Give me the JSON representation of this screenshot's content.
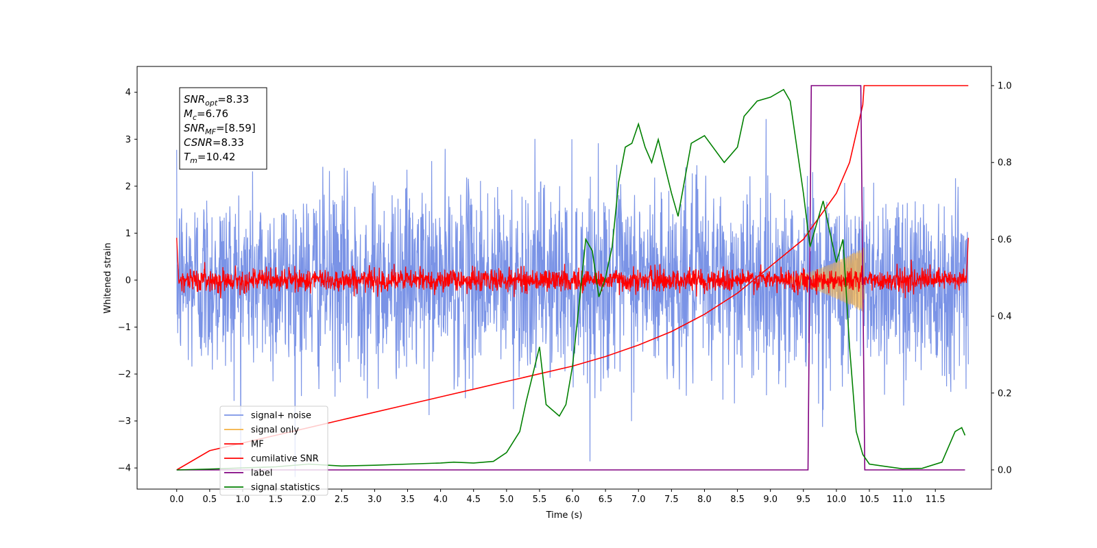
{
  "chart_data": {
    "type": "line",
    "xlabel": "Time (s)",
    "ylabel": "Whitened strain",
    "xlim": [
      -0.6,
      12.35
    ],
    "ylim": [
      -4.45,
      4.55
    ],
    "y2lim": [
      -0.05,
      1.05
    ],
    "x_ticks": [
      "0.0",
      "0.5",
      "1.0",
      "1.5",
      "2.0",
      "2.5",
      "3.0",
      "3.5",
      "4.0",
      "4.5",
      "5.0",
      "5.5",
      "6.0",
      "6.5",
      "7.0",
      "7.5",
      "8.0",
      "8.5",
      "9.0",
      "9.5",
      "10.0",
      "10.5",
      "11.0",
      "11.5"
    ],
    "y_ticks": [
      "4",
      "3",
      "2",
      "1",
      "0",
      "−1",
      "−2",
      "−3",
      "−4"
    ],
    "y2_ticks": [
      "1.0",
      "0.8",
      "0.6",
      "0.4",
      "0.2",
      "0.0"
    ],
    "annotation": [
      {
        "base": "SNR",
        "sub": "opt",
        "rest": "=8.33"
      },
      {
        "base": "M",
        "sub": "c",
        "rest": "=6.76"
      },
      {
        "base": "SNR",
        "sub": "MF",
        "rest": "=[8.59]"
      },
      {
        "base": "CSNR",
        "sub": "",
        "rest": "=8.33"
      },
      {
        "base": "T",
        "sub": "m",
        "rest": "=10.42"
      }
    ],
    "legend": {
      "position": "lower-left",
      "entries": [
        {
          "label": "signal+ noise",
          "color": "#7a93e6"
        },
        {
          "label": "signal only",
          "color": "#f5b041"
        },
        {
          "label": "MF",
          "color": "#ff0000"
        },
        {
          "label": "cumilative SNR",
          "color": "#ff0000"
        },
        {
          "label": "label",
          "color": "#800080"
        },
        {
          "label": "signal statistics",
          "color": "#008000"
        }
      ]
    },
    "series": [
      {
        "name": "signal+ noise",
        "axis": "left",
        "color": "#7a93e6",
        "x_range": [
          0,
          12
        ],
        "amplitude_peak": 4.2,
        "noise_std": 1.0
      },
      {
        "name": "signal only",
        "axis": "left",
        "color": "#f5b041",
        "x_range": [
          9.0,
          10.42
        ],
        "envelope_peak": 0.7
      },
      {
        "name": "MF",
        "axis": "left",
        "color": "#ff0000",
        "x_range": [
          0,
          12
        ],
        "noise_std": 0.12
      },
      {
        "name": "cumilative SNR",
        "axis": "right",
        "color": "#ff0000",
        "x": [
          0.0,
          0.5,
          1.0,
          1.5,
          2.0,
          2.5,
          3.0,
          3.5,
          4.0,
          4.5,
          5.0,
          5.5,
          6.0,
          6.5,
          7.0,
          7.5,
          8.0,
          8.5,
          9.0,
          9.5,
          10.0,
          10.2,
          10.4,
          10.42,
          11.0,
          12.0
        ],
        "y": [
          0.0,
          0.05,
          0.07,
          0.09,
          0.11,
          0.13,
          0.15,
          0.17,
          0.19,
          0.21,
          0.23,
          0.25,
          0.27,
          0.295,
          0.325,
          0.36,
          0.405,
          0.46,
          0.53,
          0.6,
          0.72,
          0.8,
          0.95,
          1.0,
          1.0,
          1.0
        ]
      },
      {
        "name": "label",
        "axis": "right",
        "color": "#800080",
        "x": [
          0.0,
          9.57,
          9.62,
          10.37,
          10.43,
          11.95
        ],
        "y": [
          0,
          0,
          1,
          1,
          0,
          0
        ]
      },
      {
        "name": "signal statistics",
        "axis": "right",
        "color": "#008000",
        "x": [
          0.0,
          0.5,
          1.0,
          1.5,
          2.0,
          2.5,
          3.0,
          3.5,
          4.0,
          4.2,
          4.5,
          4.8,
          5.0,
          5.2,
          5.3,
          5.5,
          5.6,
          5.8,
          5.9,
          6.0,
          6.1,
          6.2,
          6.3,
          6.4,
          6.5,
          6.6,
          6.7,
          6.8,
          6.9,
          7.0,
          7.1,
          7.2,
          7.3,
          7.5,
          7.6,
          7.8,
          8.0,
          8.3,
          8.5,
          8.6,
          8.8,
          9.0,
          9.2,
          9.3,
          9.5,
          9.6,
          9.8,
          10.0,
          10.1,
          10.2,
          10.3,
          10.4,
          10.5,
          10.7,
          11.0,
          11.3,
          11.6,
          11.8,
          11.9,
          11.95
        ],
        "y": [
          0.0,
          0.002,
          0.005,
          0.008,
          0.015,
          0.01,
          0.012,
          0.015,
          0.018,
          0.02,
          0.018,
          0.022,
          0.045,
          0.1,
          0.18,
          0.32,
          0.17,
          0.14,
          0.17,
          0.27,
          0.43,
          0.6,
          0.57,
          0.45,
          0.5,
          0.58,
          0.75,
          0.84,
          0.85,
          0.9,
          0.84,
          0.8,
          0.86,
          0.72,
          0.66,
          0.85,
          0.87,
          0.8,
          0.84,
          0.92,
          0.96,
          0.97,
          0.99,
          0.96,
          0.72,
          0.58,
          0.7,
          0.54,
          0.6,
          0.32,
          0.1,
          0.04,
          0.015,
          0.01,
          0.003,
          0.004,
          0.02,
          0.1,
          0.11,
          0.09
        ]
      }
    ]
  }
}
